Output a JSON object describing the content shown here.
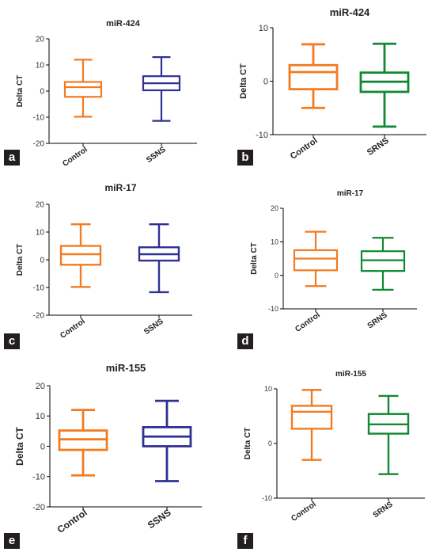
{
  "chart_data": [
    {
      "panel": "a",
      "type": "boxplot",
      "title": "miR-424",
      "ylabel": "Delta CT",
      "ylim": [
        -20,
        20
      ],
      "yticks": [
        -20,
        -10,
        0,
        10,
        20
      ],
      "categories": [
        "Control",
        "SSNS"
      ],
      "boxes": [
        {
          "min": -9.8,
          "q1": -2.2,
          "median": 1.5,
          "q3": 3.5,
          "max": 12,
          "color": "#f47a20"
        },
        {
          "min": -11.4,
          "q1": 0.3,
          "median": 3,
          "q3": 5.7,
          "max": 13,
          "color": "#2e3192"
        }
      ]
    },
    {
      "panel": "b",
      "type": "boxplot",
      "title": "miR-424",
      "ylabel": "Delta CT",
      "ylim": [
        -10,
        10
      ],
      "yticks": [
        -10,
        0,
        10
      ],
      "categories": [
        "Control",
        "SRNS"
      ],
      "boxes": [
        {
          "min": -5,
          "q1": -1.5,
          "median": 1.7,
          "q3": 3,
          "max": 6.9,
          "color": "#f47a20"
        },
        {
          "min": -8.5,
          "q1": -2,
          "median": -0.1,
          "q3": 1.6,
          "max": 7,
          "color": "#118833"
        }
      ]
    },
    {
      "panel": "c",
      "type": "boxplot",
      "title": "miR-17",
      "ylabel": "Delta CT",
      "ylim": [
        -20,
        20
      ],
      "yticks": [
        -20,
        -10,
        0,
        10,
        20
      ],
      "categories": [
        "Control",
        "SSNS"
      ],
      "boxes": [
        {
          "min": -9.8,
          "q1": -1.8,
          "median": 2,
          "q3": 5,
          "max": 12.8,
          "color": "#f47a20"
        },
        {
          "min": -11.7,
          "q1": -0.3,
          "median": 2,
          "q3": 4.5,
          "max": 12.8,
          "color": "#2e3192"
        }
      ]
    },
    {
      "panel": "d",
      "type": "boxplot",
      "title": "miR-17",
      "ylabel": "Delta CT",
      "ylim": [
        -10,
        20
      ],
      "yticks": [
        -10,
        0,
        10,
        20
      ],
      "categories": [
        "Control",
        "SRNS"
      ],
      "boxes": [
        {
          "min": -3.2,
          "q1": 1.5,
          "median": 5,
          "q3": 7.5,
          "max": 13,
          "color": "#f47a20"
        },
        {
          "min": -4.3,
          "q1": 1.3,
          "median": 4.5,
          "q3": 7.2,
          "max": 11.2,
          "color": "#118833"
        }
      ]
    },
    {
      "panel": "e",
      "type": "boxplot",
      "title": "miR-155",
      "ylabel": "Delta CT",
      "ylim": [
        -20,
        20
      ],
      "yticks": [
        -20,
        -10,
        0,
        10,
        20
      ],
      "categories": [
        "Control",
        "SSNS"
      ],
      "boxes": [
        {
          "min": -9.6,
          "q1": -1.2,
          "median": 2.3,
          "q3": 5.2,
          "max": 12,
          "color": "#f47a20"
        },
        {
          "min": -11.5,
          "q1": 0,
          "median": 3.2,
          "q3": 6.3,
          "max": 15,
          "color": "#2e3192"
        }
      ]
    },
    {
      "panel": "f",
      "type": "boxplot",
      "title": "miR-155",
      "ylabel": "Delta CT",
      "ylim": [
        -10,
        10
      ],
      "yticks": [
        -10,
        0,
        10
      ],
      "categories": [
        "Control",
        "SRNS"
      ],
      "boxes": [
        {
          "min": -3,
          "q1": 2.7,
          "median": 5.8,
          "q3": 6.9,
          "max": 9.8,
          "color": "#f47a20"
        },
        {
          "min": -5.6,
          "q1": 1.8,
          "median": 3.5,
          "q3": 5.4,
          "max": 8.7,
          "color": "#118833"
        }
      ]
    }
  ]
}
